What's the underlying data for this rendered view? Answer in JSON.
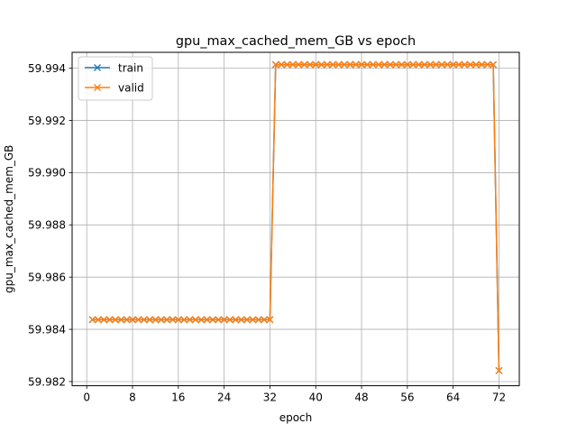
{
  "chart_data": {
    "type": "line",
    "title": "gpu_max_cached_mem_GB vs epoch",
    "xlabel": "epoch",
    "ylabel": "gpu_max_cached_mem_GB",
    "xlim": [
      -2.55,
      75.55
    ],
    "ylim": [
      59.98184,
      59.99461
    ],
    "xticks": [
      0,
      8,
      16,
      24,
      32,
      40,
      48,
      56,
      64,
      72
    ],
    "xtick_labels": [
      "0",
      "8",
      "16",
      "24",
      "32",
      "40",
      "48",
      "56",
      "64",
      "72"
    ],
    "yticks": [
      59.982,
      59.984,
      59.986,
      59.988,
      59.99,
      59.992,
      59.994
    ],
    "ytick_labels": [
      "59.982",
      "59.984",
      "59.986",
      "59.988",
      "59.990",
      "59.992",
      "59.994"
    ],
    "grid": true,
    "legend_position": "top-left",
    "segments": [
      {
        "from": 1,
        "to": 32,
        "value": 59.98437
      },
      {
        "from": 33,
        "to": 71,
        "value": 59.99414
      },
      {
        "from": 72,
        "to": 72,
        "value": 59.98242
      }
    ],
    "series": [
      {
        "name": "train",
        "color": "#1f77b4",
        "marker": "x"
      },
      {
        "name": "valid",
        "color": "#ff7f0e",
        "marker": "x"
      }
    ]
  }
}
